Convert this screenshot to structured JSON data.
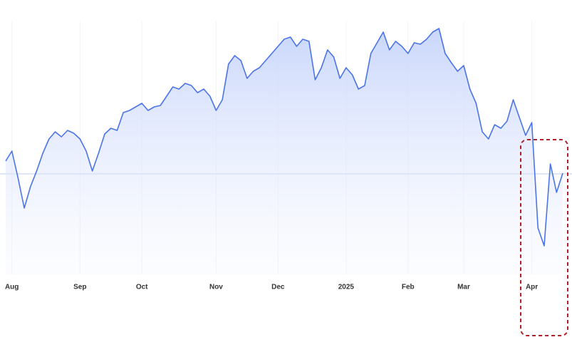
{
  "chart_data": {
    "type": "line",
    "categories": [
      null,
      "Aug",
      null,
      null,
      null,
      null,
      null,
      null,
      null,
      null,
      null,
      null,
      "Sep",
      null,
      null,
      null,
      null,
      null,
      null,
      null,
      null,
      null,
      "Oct",
      null,
      null,
      null,
      null,
      null,
      null,
      null,
      null,
      null,
      null,
      null,
      "Nov",
      null,
      null,
      null,
      null,
      null,
      null,
      null,
      null,
      null,
      "Dec",
      null,
      null,
      null,
      null,
      null,
      null,
      null,
      null,
      null,
      null,
      "2025",
      null,
      null,
      null,
      null,
      null,
      null,
      null,
      null,
      null,
      "Feb",
      null,
      null,
      null,
      null,
      null,
      null,
      null,
      null,
      "Mar",
      null,
      null,
      null,
      null,
      null,
      null,
      null,
      null,
      null,
      null,
      "Apr",
      null,
      null,
      null,
      null,
      null
    ],
    "series": [
      {
        "color": "#4a74e8",
        "values": [
          159,
          173,
          135,
          93,
          123,
          145,
          170,
          190,
          200,
          193,
          202,
          198,
          190,
          173,
          145,
          170,
          197,
          205,
          202,
          227,
          230,
          235,
          240,
          230,
          235,
          237,
          250,
          263,
          260,
          268,
          265,
          255,
          260,
          250,
          230,
          245,
          295,
          307,
          300,
          275,
          285,
          290,
          300,
          310,
          320,
          330,
          333,
          320,
          330,
          327,
          273,
          290,
          315,
          305,
          275,
          290,
          280,
          260,
          265,
          310,
          325,
          340,
          315,
          327,
          320,
          310,
          325,
          323,
          330,
          340,
          345,
          310,
          297,
          285,
          293,
          260,
          240,
          200,
          190,
          210,
          205,
          215,
          245,
          220,
          195,
          213,
          65,
          40,
          155,
          115,
          142
        ]
      }
    ],
    "ylim": [
      0,
      350
    ],
    "reference_line": 141,
    "grid": true
  }
}
